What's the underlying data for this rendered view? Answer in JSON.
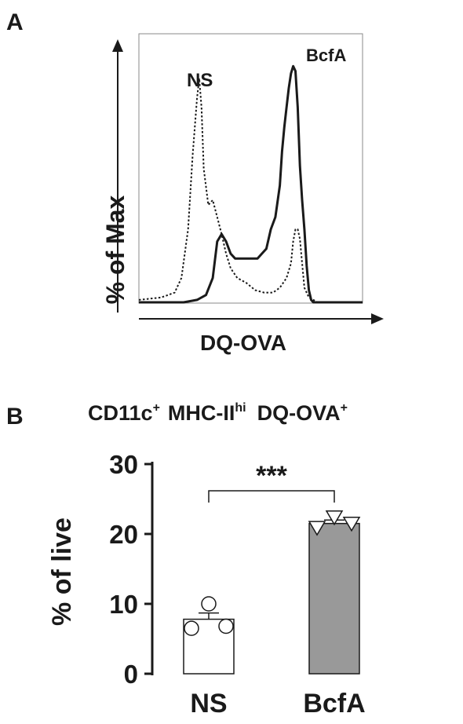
{
  "chart_data": [
    {
      "panel_label": "A",
      "type": "line",
      "ylabel": "% of Max",
      "xlabel": "DQ-OVA",
      "x_range": [
        0,
        100
      ],
      "y_range": [
        0,
        100
      ],
      "grid": false,
      "series": [
        {
          "name": "NS",
          "style": "dotted",
          "x": [
            0,
            10,
            16,
            19,
            22,
            24,
            26,
            27,
            28,
            29,
            31,
            33,
            35,
            37,
            39,
            41,
            44,
            48,
            52,
            56,
            60,
            63,
            66,
            68,
            69,
            70,
            71,
            72,
            73,
            74,
            76,
            78,
            80,
            100
          ],
          "y": [
            1,
            2,
            4,
            10,
            30,
            60,
            84,
            92,
            80,
            55,
            40,
            42,
            35,
            28,
            20,
            14,
            10,
            8,
            5,
            4,
            4,
            6,
            10,
            16,
            25,
            30,
            30,
            26,
            16,
            6,
            2,
            1,
            0,
            0
          ]
        },
        {
          "name": "BcfA",
          "style": "solid",
          "x": [
            0,
            20,
            26,
            30,
            33,
            35,
            37,
            39,
            41,
            43,
            46,
            50,
            53,
            57,
            59,
            61,
            63,
            64,
            65,
            66,
            67,
            68,
            69,
            70,
            71,
            72,
            73,
            74,
            75,
            76,
            77,
            78,
            79,
            100
          ],
          "y": [
            0,
            0,
            1,
            3,
            10,
            25,
            28,
            25,
            20,
            18,
            18,
            18,
            18,
            22,
            30,
            35,
            48,
            62,
            72,
            80,
            88,
            94,
            97,
            95,
            80,
            56,
            42,
            30,
            15,
            5,
            1,
            0,
            0,
            0
          ]
        }
      ],
      "peak_labels": [
        "NS",
        "BcfA"
      ]
    },
    {
      "panel_label": "B",
      "type": "bar",
      "title_parts": {
        "p1": "CD11c",
        "p1_sup": "+",
        "p2": "MHC-II",
        "p2_sup": "hi",
        "p3": "DQ-OVA",
        "p3_sup": "+"
      },
      "ylabel": "% of live",
      "categories": [
        "NS",
        "BcfA"
      ],
      "values": [
        7.8,
        21.5
      ],
      "errors": [
        0.9,
        0.5
      ],
      "points": [
        [
          10.0,
          6.5,
          6.8
        ],
        [
          22.5,
          21.0,
          21.6
        ]
      ],
      "point_markers": [
        "circle",
        "triangle-down"
      ],
      "bar_colors": [
        "#ffffff",
        "#999999"
      ],
      "ylim": [
        0,
        30
      ],
      "yticks": [
        "0",
        "10",
        "20",
        "30"
      ],
      "significance": "***"
    }
  ]
}
